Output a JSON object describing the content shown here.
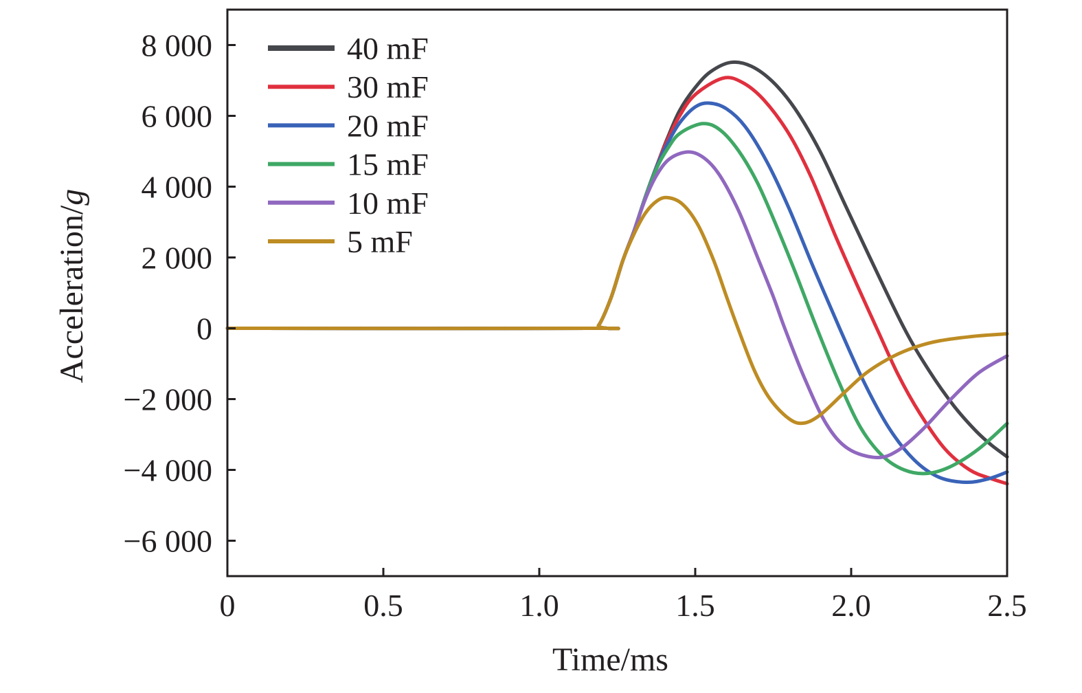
{
  "chart_data": {
    "type": "line",
    "title": "",
    "xlabel": "Time/ms",
    "ylabel_main": "Acceleration/",
    "ylabel_unit": "g",
    "xlim": [
      0,
      2.5
    ],
    "ylim": [
      -7000,
      9000
    ],
    "grid": false,
    "legend_position": "top-left",
    "x_ticks": [
      0,
      0.5,
      1.0,
      1.5,
      2.0,
      2.5
    ],
    "x_tick_labels": [
      "0",
      "0.5",
      "1.0",
      "1.5",
      "2.0",
      "2.5"
    ],
    "y_ticks": [
      8000,
      6000,
      4000,
      2000,
      0,
      -2000,
      -4000,
      -6000
    ],
    "y_tick_labels": [
      "8 000",
      "6 000",
      "4 000",
      "2 000",
      "0",
      "−2 000",
      "−4 000",
      "−6 000"
    ],
    "series": [
      {
        "name": "40 mF",
        "color": "#45474c",
        "points": [
          [
            0,
            0
          ],
          [
            1.16,
            0
          ],
          [
            1.19,
            80
          ],
          [
            1.23,
            860
          ],
          [
            1.267,
            1890
          ],
          [
            1.303,
            2730
          ],
          [
            1.34,
            3710
          ],
          [
            1.378,
            4620
          ],
          [
            1.41,
            5350
          ],
          [
            1.45,
            6150
          ],
          [
            1.5,
            6800
          ],
          [
            1.55,
            7250
          ],
          [
            1.615,
            7510
          ],
          [
            1.68,
            7400
          ],
          [
            1.75,
            6950
          ],
          [
            1.82,
            6200
          ],
          [
            1.9,
            5000
          ],
          [
            1.98,
            3500
          ],
          [
            2.06,
            2000
          ],
          [
            2.17,
            0
          ],
          [
            2.25,
            -1200
          ],
          [
            2.33,
            -2200
          ],
          [
            2.4,
            -2900
          ],
          [
            2.45,
            -3300
          ],
          [
            2.5,
            -3630
          ]
        ]
      },
      {
        "name": "30 mF",
        "color": "#e0303e",
        "points": [
          [
            0,
            0
          ],
          [
            1.16,
            0
          ],
          [
            1.19,
            80
          ],
          [
            1.23,
            860
          ],
          [
            1.267,
            1890
          ],
          [
            1.303,
            2730
          ],
          [
            1.34,
            3710
          ],
          [
            1.378,
            4620
          ],
          [
            1.41,
            5300
          ],
          [
            1.45,
            6000
          ],
          [
            1.5,
            6600
          ],
          [
            1.587,
            7060
          ],
          [
            1.65,
            6950
          ],
          [
            1.72,
            6450
          ],
          [
            1.8,
            5500
          ],
          [
            1.87,
            4300
          ],
          [
            1.95,
            2600
          ],
          [
            2.02,
            1200
          ],
          [
            2.082,
            0
          ],
          [
            2.15,
            -1300
          ],
          [
            2.22,
            -2400
          ],
          [
            2.3,
            -3400
          ],
          [
            2.38,
            -4000
          ],
          [
            2.45,
            -4250
          ],
          [
            2.5,
            -4390
          ]
        ]
      },
      {
        "name": "20 mF",
        "color": "#3a63b8",
        "points": [
          [
            0,
            0
          ],
          [
            1.16,
            0
          ],
          [
            1.19,
            80
          ],
          [
            1.23,
            860
          ],
          [
            1.267,
            1890
          ],
          [
            1.303,
            2730
          ],
          [
            1.34,
            3710
          ],
          [
            1.378,
            4600
          ],
          [
            1.41,
            5200
          ],
          [
            1.45,
            5800
          ],
          [
            1.5,
            6250
          ],
          [
            1.545,
            6360
          ],
          [
            1.6,
            6200
          ],
          [
            1.66,
            5700
          ],
          [
            1.73,
            4700
          ],
          [
            1.8,
            3400
          ],
          [
            1.88,
            1700
          ],
          [
            1.963,
            0
          ],
          [
            2.04,
            -1500
          ],
          [
            2.12,
            -2800
          ],
          [
            2.2,
            -3700
          ],
          [
            2.28,
            -4200
          ],
          [
            2.368,
            -4350
          ],
          [
            2.44,
            -4250
          ],
          [
            2.5,
            -4060
          ]
        ]
      },
      {
        "name": "15 mF",
        "color": "#3fa865",
        "points": [
          [
            0,
            0
          ],
          [
            1.16,
            0
          ],
          [
            1.19,
            80
          ],
          [
            1.23,
            860
          ],
          [
            1.267,
            1890
          ],
          [
            1.303,
            2730
          ],
          [
            1.34,
            3700
          ],
          [
            1.378,
            4550
          ],
          [
            1.41,
            5050
          ],
          [
            1.45,
            5500
          ],
          [
            1.523,
            5780
          ],
          [
            1.58,
            5600
          ],
          [
            1.64,
            5000
          ],
          [
            1.7,
            4100
          ],
          [
            1.76,
            2900
          ],
          [
            1.82,
            1600
          ],
          [
            1.89,
            0
          ],
          [
            1.96,
            -1500
          ],
          [
            2.03,
            -2800
          ],
          [
            2.1,
            -3600
          ],
          [
            2.17,
            -4000
          ],
          [
            2.243,
            -4100
          ],
          [
            2.32,
            -3900
          ],
          [
            2.41,
            -3400
          ],
          [
            2.5,
            -2690
          ]
        ]
      },
      {
        "name": "10 mF",
        "color": "#9068bf",
        "points": [
          [
            0,
            0
          ],
          [
            1.16,
            0
          ],
          [
            1.19,
            80
          ],
          [
            1.23,
            860
          ],
          [
            1.267,
            1890
          ],
          [
            1.303,
            2730
          ],
          [
            1.34,
            3650
          ],
          [
            1.378,
            4350
          ],
          [
            1.42,
            4800
          ],
          [
            1.479,
            4980
          ],
          [
            1.53,
            4800
          ],
          [
            1.58,
            4300
          ],
          [
            1.64,
            3300
          ],
          [
            1.7,
            2000
          ],
          [
            1.75,
            900
          ],
          [
            1.787,
            0
          ],
          [
            1.85,
            -1400
          ],
          [
            1.92,
            -2700
          ],
          [
            1.99,
            -3400
          ],
          [
            2.082,
            -3650
          ],
          [
            2.15,
            -3450
          ],
          [
            2.23,
            -2850
          ],
          [
            2.32,
            -2000
          ],
          [
            2.41,
            -1250
          ],
          [
            2.5,
            -780
          ]
        ]
      },
      {
        "name": "5 mF",
        "color": "#bd8c23",
        "points": [
          [
            0,
            0
          ],
          [
            1.16,
            0
          ],
          [
            1.19,
            80
          ],
          [
            1.23,
            860
          ],
          [
            1.267,
            1890
          ],
          [
            1.303,
            2650
          ],
          [
            1.34,
            3250
          ],
          [
            1.378,
            3600
          ],
          [
            1.413,
            3690
          ],
          [
            1.46,
            3500
          ],
          [
            1.51,
            2900
          ],
          [
            1.56,
            1900
          ],
          [
            1.6,
            900
          ],
          [
            1.637,
            0
          ],
          [
            1.69,
            -1200
          ],
          [
            1.74,
            -2000
          ],
          [
            1.8,
            -2550
          ],
          [
            1.846,
            -2680
          ],
          [
            1.9,
            -2450
          ],
          [
            1.978,
            -1815
          ],
          [
            2.05,
            -1250
          ],
          [
            2.133,
            -800
          ],
          [
            2.21,
            -520
          ],
          [
            2.286,
            -350
          ],
          [
            2.4,
            -220
          ],
          [
            2.5,
            -156
          ]
        ]
      }
    ]
  }
}
